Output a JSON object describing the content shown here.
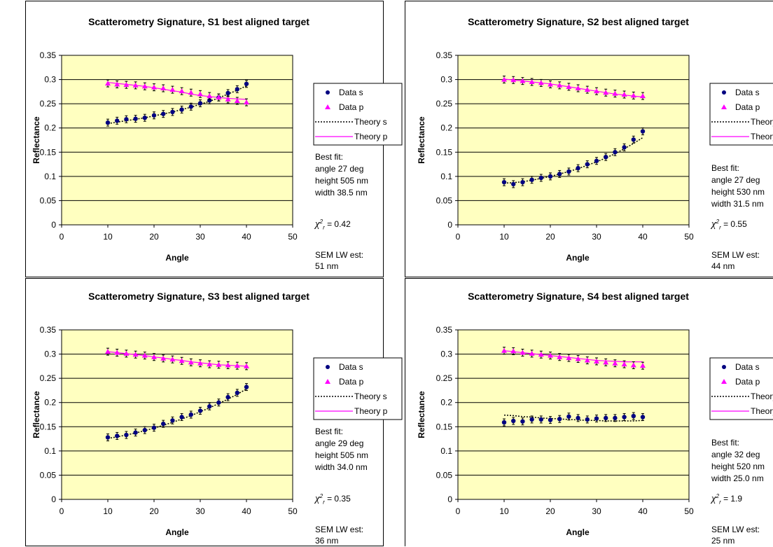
{
  "colors": {
    "plot_bg": "#ffffc0",
    "data_s": "#000080",
    "data_p": "#ff00ff",
    "grid": "#000000"
  },
  "legend": {
    "data_s": "Data s",
    "data_p": "Data p",
    "theory_s": "Theory s",
    "theory_p": "Theory p"
  },
  "chart_data": [
    {
      "type": "scatter",
      "title": "Scatterometry Signature, S1 best aligned target",
      "xlabel": "Angle",
      "ylabel": "Reflectance",
      "xlim": [
        0,
        50
      ],
      "ylim": [
        0,
        0.35
      ],
      "xticks": [
        "0",
        "10",
        "20",
        "30",
        "40",
        "50"
      ],
      "yticks": [
        "0",
        "0.05",
        "0.1",
        "0.15",
        "0.2",
        "0.25",
        "0.3",
        "0.35"
      ],
      "grid": true,
      "legend_position": "right",
      "x": [
        10,
        12,
        14,
        16,
        18,
        20,
        22,
        24,
        26,
        28,
        30,
        32,
        34,
        36,
        38,
        40
      ],
      "series": [
        {
          "name": "Data s",
          "kind": "markers",
          "marker": "circle",
          "values": [
            0.211,
            0.215,
            0.218,
            0.219,
            0.221,
            0.226,
            0.229,
            0.233,
            0.238,
            0.244,
            0.251,
            0.257,
            0.263,
            0.272,
            0.28,
            0.291
          ]
        },
        {
          "name": "Data p",
          "kind": "markers",
          "marker": "triangle",
          "values": [
            0.292,
            0.29,
            0.289,
            0.288,
            0.286,
            0.284,
            0.282,
            0.279,
            0.276,
            0.273,
            0.27,
            0.266,
            0.263,
            0.259,
            0.256,
            0.253
          ]
        },
        {
          "name": "Theory s",
          "kind": "dotted-line",
          "values": [
            0.209,
            0.212,
            0.215,
            0.218,
            0.221,
            0.225,
            0.229,
            0.233,
            0.238,
            0.243,
            0.249,
            0.255,
            0.262,
            0.27,
            0.278,
            0.287
          ]
        },
        {
          "name": "Theory p",
          "kind": "line",
          "values": [
            0.294,
            0.292,
            0.29,
            0.288,
            0.286,
            0.283,
            0.28,
            0.277,
            0.274,
            0.27,
            0.267,
            0.265,
            0.263,
            0.261,
            0.26,
            0.259
          ]
        }
      ],
      "notes": {
        "fit_heading": "Best fit:",
        "angle": "angle 27 deg",
        "height": "height 505 nm",
        "width": "width 38.5 nm",
        "chi_value": " = 0.42",
        "sem_line1": "SEM LW est:",
        "sem_line2": "51 nm"
      }
    },
    {
      "type": "scatter",
      "title": "Scatterometry Signature, S2 best aligned target",
      "xlabel": "Angle",
      "ylabel": "Reflectance",
      "xlim": [
        0,
        50
      ],
      "ylim": [
        0,
        0.35
      ],
      "xticks": [
        "0",
        "10",
        "20",
        "30",
        "40",
        "50"
      ],
      "yticks": [
        "0",
        "0.05",
        "0.1",
        "0.15",
        "0.2",
        "0.25",
        "0.3",
        "0.35"
      ],
      "grid": true,
      "legend_position": "right",
      "x": [
        10,
        12,
        14,
        16,
        18,
        20,
        22,
        24,
        26,
        28,
        30,
        32,
        34,
        36,
        38,
        40
      ],
      "series": [
        {
          "name": "Data s",
          "kind": "markers",
          "marker": "circle",
          "values": [
            0.088,
            0.084,
            0.088,
            0.093,
            0.097,
            0.1,
            0.105,
            0.11,
            0.117,
            0.125,
            0.132,
            0.14,
            0.15,
            0.16,
            0.176,
            0.193
          ]
        },
        {
          "name": "Data p",
          "kind": "markers",
          "marker": "triangle",
          "values": [
            0.3,
            0.299,
            0.297,
            0.295,
            0.293,
            0.29,
            0.288,
            0.285,
            0.282,
            0.279,
            0.276,
            0.273,
            0.271,
            0.269,
            0.267,
            0.266
          ]
        },
        {
          "name": "Theory s",
          "kind": "dotted-line",
          "values": [
            0.086,
            0.087,
            0.089,
            0.092,
            0.096,
            0.1,
            0.105,
            0.11,
            0.116,
            0.123,
            0.13,
            0.138,
            0.147,
            0.157,
            0.168,
            0.18
          ]
        },
        {
          "name": "Theory p",
          "kind": "line",
          "values": [
            0.301,
            0.299,
            0.297,
            0.295,
            0.293,
            0.291,
            0.288,
            0.285,
            0.282,
            0.279,
            0.276,
            0.273,
            0.27,
            0.268,
            0.266,
            0.264
          ]
        }
      ],
      "notes": {
        "fit_heading": "Best fit:",
        "angle": "angle 27 deg",
        "height": "height 530 nm",
        "width": "width 31.5 nm",
        "chi_value": " = 0.55",
        "sem_line1": "SEM LW est:",
        "sem_line2": "44 nm"
      }
    },
    {
      "type": "scatter",
      "title": "Scatterometry Signature, S3 best aligned target",
      "xlabel": "Angle",
      "ylabel": "Reflectance",
      "xlim": [
        0,
        50
      ],
      "ylim": [
        0,
        0.35
      ],
      "xticks": [
        "0",
        "10",
        "20",
        "30",
        "40",
        "50"
      ],
      "yticks": [
        "0",
        "0.05",
        "0.1",
        "0.15",
        "0.2",
        "0.25",
        "0.3",
        "0.35"
      ],
      "grid": true,
      "legend_position": "right",
      "x": [
        10,
        12,
        14,
        16,
        18,
        20,
        22,
        24,
        26,
        28,
        30,
        32,
        34,
        36,
        38,
        40
      ],
      "series": [
        {
          "name": "Data s",
          "kind": "markers",
          "marker": "circle",
          "values": [
            0.128,
            0.131,
            0.133,
            0.138,
            0.143,
            0.148,
            0.156,
            0.163,
            0.17,
            0.175,
            0.183,
            0.192,
            0.2,
            0.211,
            0.22,
            0.232
          ]
        },
        {
          "name": "Data p",
          "kind": "markers",
          "marker": "triangle",
          "values": [
            0.305,
            0.303,
            0.301,
            0.299,
            0.297,
            0.294,
            0.291,
            0.289,
            0.286,
            0.283,
            0.281,
            0.279,
            0.278,
            0.277,
            0.276,
            0.275
          ]
        },
        {
          "name": "Theory s",
          "kind": "dotted-line",
          "values": [
            0.126,
            0.129,
            0.133,
            0.137,
            0.142,
            0.147,
            0.153,
            0.159,
            0.166,
            0.173,
            0.181,
            0.189,
            0.198,
            0.207,
            0.217,
            0.228
          ]
        },
        {
          "name": "Theory p",
          "kind": "line",
          "values": [
            0.305,
            0.303,
            0.301,
            0.299,
            0.297,
            0.294,
            0.292,
            0.289,
            0.287,
            0.284,
            0.282,
            0.28,
            0.278,
            0.277,
            0.276,
            0.275
          ]
        }
      ],
      "notes": {
        "fit_heading": "Best fit:",
        "angle": "angle 29 deg",
        "height": "height 505 nm",
        "width": "width 34.0 nm",
        "chi_value": " = 0.35",
        "sem_line1": "SEM LW est:",
        "sem_line2": "36 nm"
      }
    },
    {
      "type": "scatter",
      "title": "Scatterometry Signature, S4 best aligned target",
      "xlabel": "Angle",
      "ylabel": "Reflectance",
      "xlim": [
        0,
        50
      ],
      "ylim": [
        0,
        0.35
      ],
      "xticks": [
        "0",
        "10",
        "20",
        "30",
        "40",
        "50"
      ],
      "yticks": [
        "0",
        "0.05",
        "0.1",
        "0.15",
        "0.2",
        "0.25",
        "0.3",
        "0.35"
      ],
      "grid": true,
      "legend_position": "right",
      "x": [
        10,
        12,
        14,
        16,
        18,
        20,
        22,
        24,
        26,
        28,
        30,
        32,
        34,
        36,
        38,
        40
      ],
      "series": [
        {
          "name": "Data s",
          "kind": "markers",
          "marker": "circle",
          "values": [
            0.159,
            0.162,
            0.161,
            0.165,
            0.165,
            0.164,
            0.166,
            0.171,
            0.168,
            0.165,
            0.167,
            0.168,
            0.168,
            0.17,
            0.172,
            0.17
          ]
        },
        {
          "name": "Data p",
          "kind": "markers",
          "marker": "triangle",
          "values": [
            0.307,
            0.306,
            0.303,
            0.301,
            0.299,
            0.297,
            0.294,
            0.292,
            0.29,
            0.287,
            0.285,
            0.283,
            0.281,
            0.279,
            0.277,
            0.276
          ]
        },
        {
          "name": "Theory s",
          "kind": "dotted-line",
          "values": [
            0.174,
            0.173,
            0.171,
            0.17,
            0.168,
            0.167,
            0.166,
            0.165,
            0.164,
            0.163,
            0.163,
            0.162,
            0.162,
            0.162,
            0.162,
            0.163
          ]
        },
        {
          "name": "Theory p",
          "kind": "line",
          "values": [
            0.307,
            0.305,
            0.303,
            0.301,
            0.299,
            0.297,
            0.295,
            0.293,
            0.291,
            0.289,
            0.287,
            0.286,
            0.285,
            0.284,
            0.284,
            0.284
          ]
        }
      ],
      "notes": {
        "fit_heading": "Best fit:",
        "angle": "angle 32 deg",
        "height": "height 520 nm",
        "width": "width 25.0 nm",
        "chi_value": " = 1.9",
        "sem_line1": "SEM LW est:",
        "sem_line2": "25 nm"
      }
    }
  ]
}
